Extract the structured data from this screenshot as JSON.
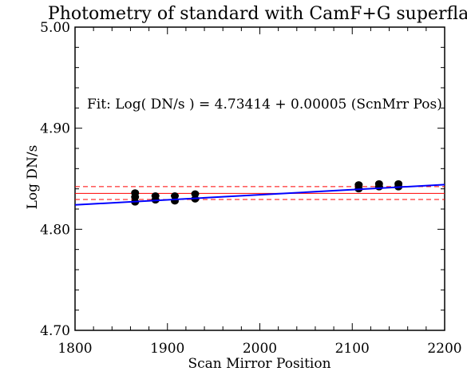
{
  "chart_data": {
    "type": "scatter",
    "title": "Photometry of standard with CamF+G superflat",
    "xlabel": "Scan Mirror Position",
    "ylabel": "Log DN/s",
    "xlim": [
      1800,
      2200
    ],
    "ylim": [
      4.7,
      5.0
    ],
    "x_ticks": [
      1800,
      1900,
      2000,
      2100,
      2200
    ],
    "x_tick_labels": [
      "1800",
      "1900",
      "2000",
      "2100",
      "2200"
    ],
    "y_ticks": [
      4.7,
      4.8,
      4.9,
      5.0
    ],
    "y_tick_labels": [
      "4.70",
      "4.80",
      "4.90",
      "5.00"
    ],
    "annotation": "Fit: Log( DN/s ) = 4.73414 +  0.00005 (ScnMrr Pos)",
    "points": [
      {
        "x": 1865,
        "y": 4.836
      },
      {
        "x": 1865,
        "y": 4.832
      },
      {
        "x": 1865,
        "y": 4.827
      },
      {
        "x": 1887,
        "y": 4.833
      },
      {
        "x": 1887,
        "y": 4.829
      },
      {
        "x": 1908,
        "y": 4.833
      },
      {
        "x": 1908,
        "y": 4.828
      },
      {
        "x": 1930,
        "y": 4.835
      },
      {
        "x": 1930,
        "y": 4.83
      },
      {
        "x": 2107,
        "y": 4.844
      },
      {
        "x": 2107,
        "y": 4.84
      },
      {
        "x": 2129,
        "y": 4.845
      },
      {
        "x": 2129,
        "y": 4.842
      },
      {
        "x": 2150,
        "y": 4.845
      },
      {
        "x": 2150,
        "y": 4.842
      }
    ],
    "fit_line": {
      "intercept": 4.73414,
      "slope": 5e-05,
      "color": "#0000ff"
    },
    "mean_line": {
      "y": 4.8355,
      "color": "#ff0000"
    },
    "sigma_lines": {
      "y": [
        4.8295,
        4.8422
      ],
      "color": "#ff0000",
      "style": "dashed"
    },
    "point_color": "#000000",
    "grid": false
  }
}
